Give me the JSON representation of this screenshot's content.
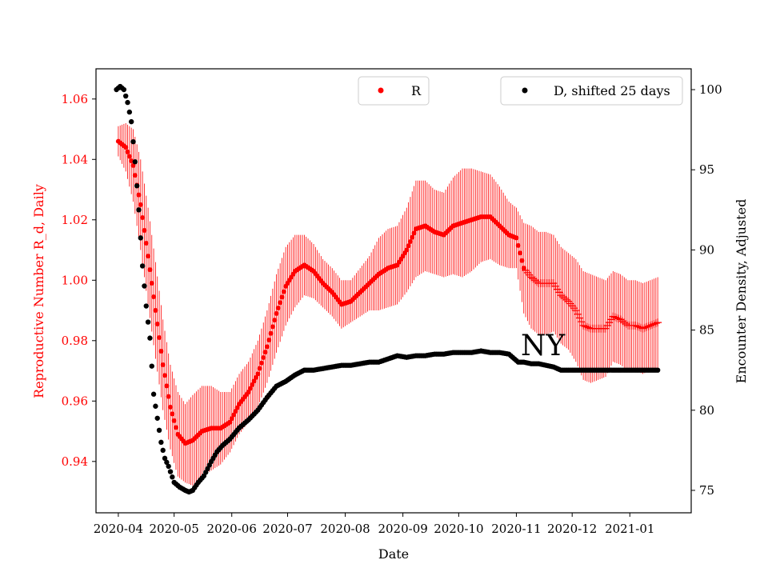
{
  "chart_data": {
    "type": "scatter",
    "title": "",
    "annotation": "NY",
    "xlabel": "Date",
    "ylabel_left": "Reproductive Number R_d, Daily",
    "ylabel_right": "Encounter Density, Adjusted",
    "x_range_days": [
      -12,
      308
    ],
    "ylim_left": [
      0.923,
      1.07
    ],
    "ylim_right": [
      73.6,
      101.3
    ],
    "x_ticks": [
      {
        "label": "2020-04",
        "day": 0
      },
      {
        "label": "2020-05",
        "day": 30
      },
      {
        "label": "2020-06",
        "day": 61
      },
      {
        "label": "2020-07",
        "day": 91
      },
      {
        "label": "2020-08",
        "day": 122
      },
      {
        "label": "2020-09",
        "day": 153
      },
      {
        "label": "2020-10",
        "day": 183
      },
      {
        "label": "2020-11",
        "day": 214
      },
      {
        "label": "2020-12",
        "day": 244
      },
      {
        "label": "2021-01",
        "day": 275
      }
    ],
    "y_ticks_left": [
      "0.94",
      "0.96",
      "0.98",
      "1.00",
      "1.02",
      "1.04",
      "1.06"
    ],
    "y_ticks_right": [
      "75",
      "80",
      "85",
      "90",
      "95",
      "100"
    ],
    "legend": {
      "r_label": "R",
      "d_label": "D, shifted 25 days",
      "r_position": "top-center",
      "d_position": "top-right"
    },
    "colors": {
      "r": "#ff0000",
      "d": "#000000",
      "left_axis": "#ff0000",
      "right_axis": "#000000"
    },
    "series_r": {
      "name": "R",
      "marker_dot_until_day": 218,
      "keypoints_day": [
        0,
        4,
        8,
        12,
        16,
        20,
        24,
        28,
        32,
        36,
        40,
        45,
        50,
        55,
        60,
        65,
        70,
        75,
        80,
        85,
        90,
        95,
        100,
        105,
        110,
        115,
        120,
        125,
        130,
        135,
        140,
        145,
        150,
        155,
        160,
        165,
        170,
        175,
        180,
        185,
        190,
        195,
        200,
        205,
        210,
        214,
        218,
        222,
        226,
        230,
        234,
        238,
        242,
        246,
        250,
        254,
        258,
        262,
        266,
        270,
        274,
        278,
        282,
        286,
        290
      ],
      "keypoints_value": [
        1.046,
        1.044,
        1.038,
        1.025,
        1.008,
        0.99,
        0.972,
        0.958,
        0.949,
        0.946,
        0.947,
        0.95,
        0.951,
        0.951,
        0.953,
        0.959,
        0.963,
        0.969,
        0.978,
        0.989,
        0.998,
        1.003,
        1.005,
        1.003,
        0.999,
        0.996,
        0.992,
        0.993,
        0.996,
        0.999,
        1.002,
        1.004,
        1.005,
        1.01,
        1.017,
        1.018,
        1.016,
        1.015,
        1.018,
        1.019,
        1.02,
        1.021,
        1.021,
        1.018,
        1.015,
        1.014,
        1.004,
        1.001,
        0.999,
        0.999,
        0.999,
        0.995,
        0.993,
        0.99,
        0.985,
        0.984,
        0.984,
        0.984,
        0.988,
        0.987,
        0.985,
        0.985,
        0.984,
        0.985,
        0.986
      ],
      "error_half_width": [
        0.005,
        0.008,
        0.012,
        0.015,
        0.016,
        0.016,
        0.015,
        0.014,
        0.014,
        0.013,
        0.015,
        0.015,
        0.014,
        0.012,
        0.01,
        0.01,
        0.01,
        0.011,
        0.012,
        0.013,
        0.013,
        0.012,
        0.01,
        0.009,
        0.008,
        0.008,
        0.008,
        0.007,
        0.008,
        0.009,
        0.012,
        0.013,
        0.013,
        0.014,
        0.016,
        0.015,
        0.014,
        0.014,
        0.016,
        0.018,
        0.017,
        0.015,
        0.014,
        0.013,
        0.011,
        0.01,
        0.015,
        0.017,
        0.017,
        0.017,
        0.016,
        0.016,
        0.016,
        0.017,
        0.018,
        0.018,
        0.017,
        0.016,
        0.015,
        0.015,
        0.015,
        0.015,
        0.015,
        0.015,
        0.015
      ]
    },
    "series_d": {
      "name": "D, shifted 25 days",
      "keypoints_day": [
        -1,
        1,
        3,
        5,
        7,
        9,
        11,
        13,
        15,
        17,
        19,
        21,
        23,
        25,
        27,
        30,
        33,
        36,
        38,
        40,
        43,
        46,
        50,
        53,
        56,
        60,
        65,
        70,
        75,
        80,
        85,
        90,
        95,
        100,
        105,
        110,
        115,
        120,
        125,
        130,
        135,
        140,
        145,
        150,
        155,
        160,
        165,
        170,
        175,
        180,
        185,
        190,
        195,
        200,
        205,
        210,
        215,
        218,
        222,
        226,
        230,
        234,
        238,
        242,
        246,
        250,
        260,
        270,
        280,
        290
      ],
      "keypoints_value": [
        100.0,
        100.2,
        100.0,
        99.2,
        98.0,
        95.5,
        92.5,
        89.0,
        86.5,
        84.5,
        81.0,
        79.5,
        78.0,
        77.0,
        76.5,
        75.5,
        75.2,
        75.0,
        74.9,
        75.0,
        75.5,
        75.9,
        76.8,
        77.4,
        77.8,
        78.2,
        78.9,
        79.4,
        80.0,
        80.8,
        81.5,
        81.8,
        82.2,
        82.5,
        82.5,
        82.6,
        82.7,
        82.8,
        82.8,
        82.9,
        83.0,
        83.0,
        83.2,
        83.4,
        83.3,
        83.4,
        83.4,
        83.5,
        83.5,
        83.6,
        83.6,
        83.6,
        83.7,
        83.6,
        83.6,
        83.5,
        83.0,
        83.0,
        82.9,
        82.9,
        82.8,
        82.7,
        82.5,
        82.5,
        82.5,
        82.5,
        82.5,
        82.5,
        82.5,
        82.5
      ]
    }
  }
}
